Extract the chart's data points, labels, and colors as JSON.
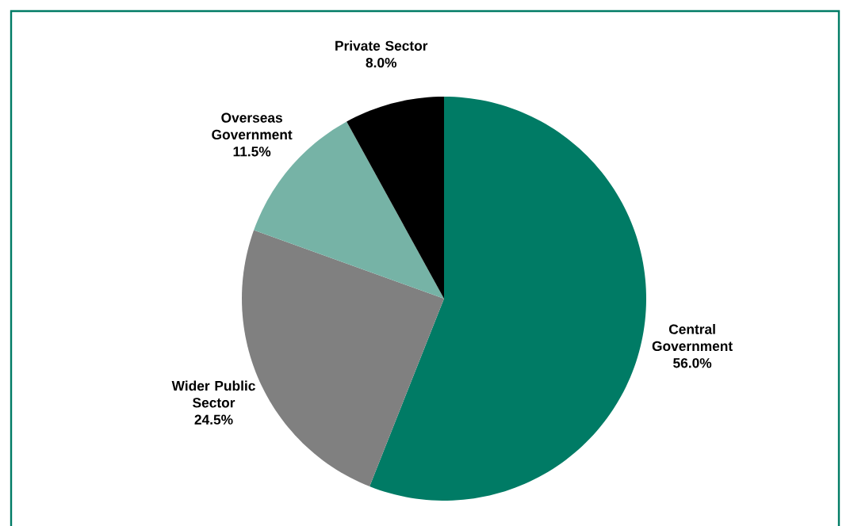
{
  "chart_data": {
    "type": "pie",
    "categories": [
      "Central Government",
      "Wider Public Sector",
      "Overseas Government",
      "Private Sector"
    ],
    "values": [
      56.0,
      24.5,
      11.5,
      8.0
    ],
    "value_labels": [
      "56.0%",
      "24.5%",
      "11.5%",
      "8.0%"
    ],
    "colors": [
      "#007b65",
      "#808080",
      "#76b3a6",
      "#000000"
    ]
  }
}
